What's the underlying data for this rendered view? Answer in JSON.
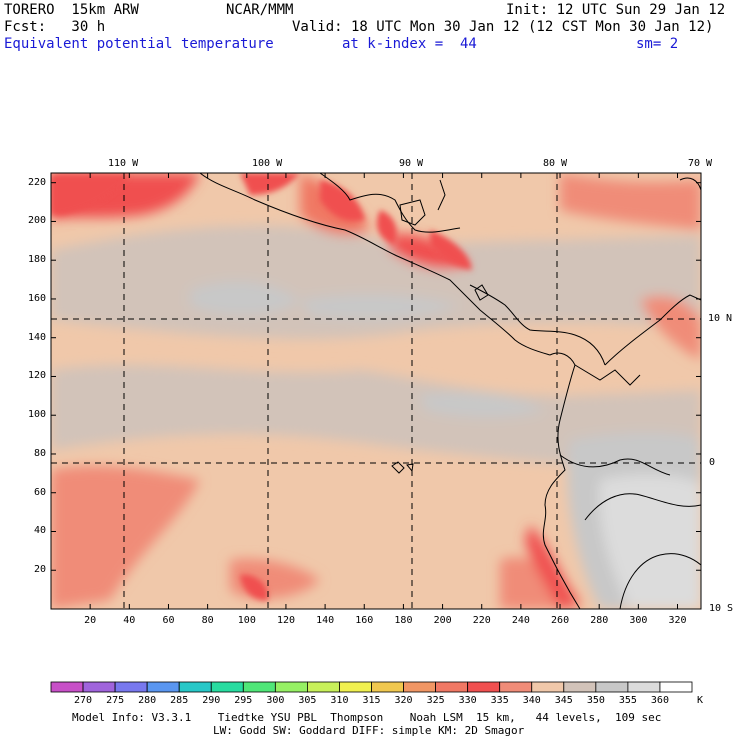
{
  "header": {
    "model": "TORERO  15km ARW",
    "org": "NCAR/MMM",
    "init": "Init: 12 UTC Sun 29 Jan 12",
    "fcst": "Fcst:   30 h",
    "valid": "Valid: 18 UTC Mon 30 Jan 12 (12 CST Mon 30 Jan 12)",
    "field": "Equivalent potential temperature",
    "level": "at k-index =  44",
    "smooth": "sm= 2"
  },
  "chart_data": {
    "type": "heatmap",
    "title": "Equivalent potential temperature",
    "x_ticks": [
      20,
      40,
      60,
      80,
      100,
      120,
      140,
      160,
      180,
      200,
      220,
      240,
      260,
      280,
      300,
      320
    ],
    "y_ticks": [
      20,
      40,
      60,
      80,
      100,
      120,
      140,
      160,
      180,
      200,
      220
    ],
    "xlim": [
      0,
      332
    ],
    "ylim": [
      0,
      225
    ],
    "longitude_labels": [
      "110 W",
      "100 W",
      "90 W",
      "80 W",
      "70 W"
    ],
    "latitude_labels": [
      "10 N",
      "0",
      "10 S"
    ],
    "colorbar": {
      "unit": "K",
      "levels": [
        270,
        275,
        280,
        285,
        290,
        295,
        300,
        305,
        310,
        315,
        320,
        325,
        330,
        335,
        340,
        345,
        350,
        355,
        360
      ],
      "colors": [
        "#c850c8",
        "#a064dc",
        "#7878ee",
        "#5a96f0",
        "#28c8c8",
        "#28dca0",
        "#50e678",
        "#96f064",
        "#c8f05a",
        "#f0f050",
        "#f0c850",
        "#f09664",
        "#f07864",
        "#f05050",
        "#f08c78",
        "#f0c8aa",
        "#d2c3b9",
        "#c8c8c8",
        "#dcdcdc",
        "#ffffff"
      ]
    },
    "grid": true
  },
  "footer": {
    "line1": "Model Info: V3.3.1    Tiedtke YSU PBL  Thompson    Noah LSM  15 km,   44 levels,  109 sec",
    "line2": "LW: Godd SW: Goddard DIFF: simple KM: 2D Smagor"
  }
}
